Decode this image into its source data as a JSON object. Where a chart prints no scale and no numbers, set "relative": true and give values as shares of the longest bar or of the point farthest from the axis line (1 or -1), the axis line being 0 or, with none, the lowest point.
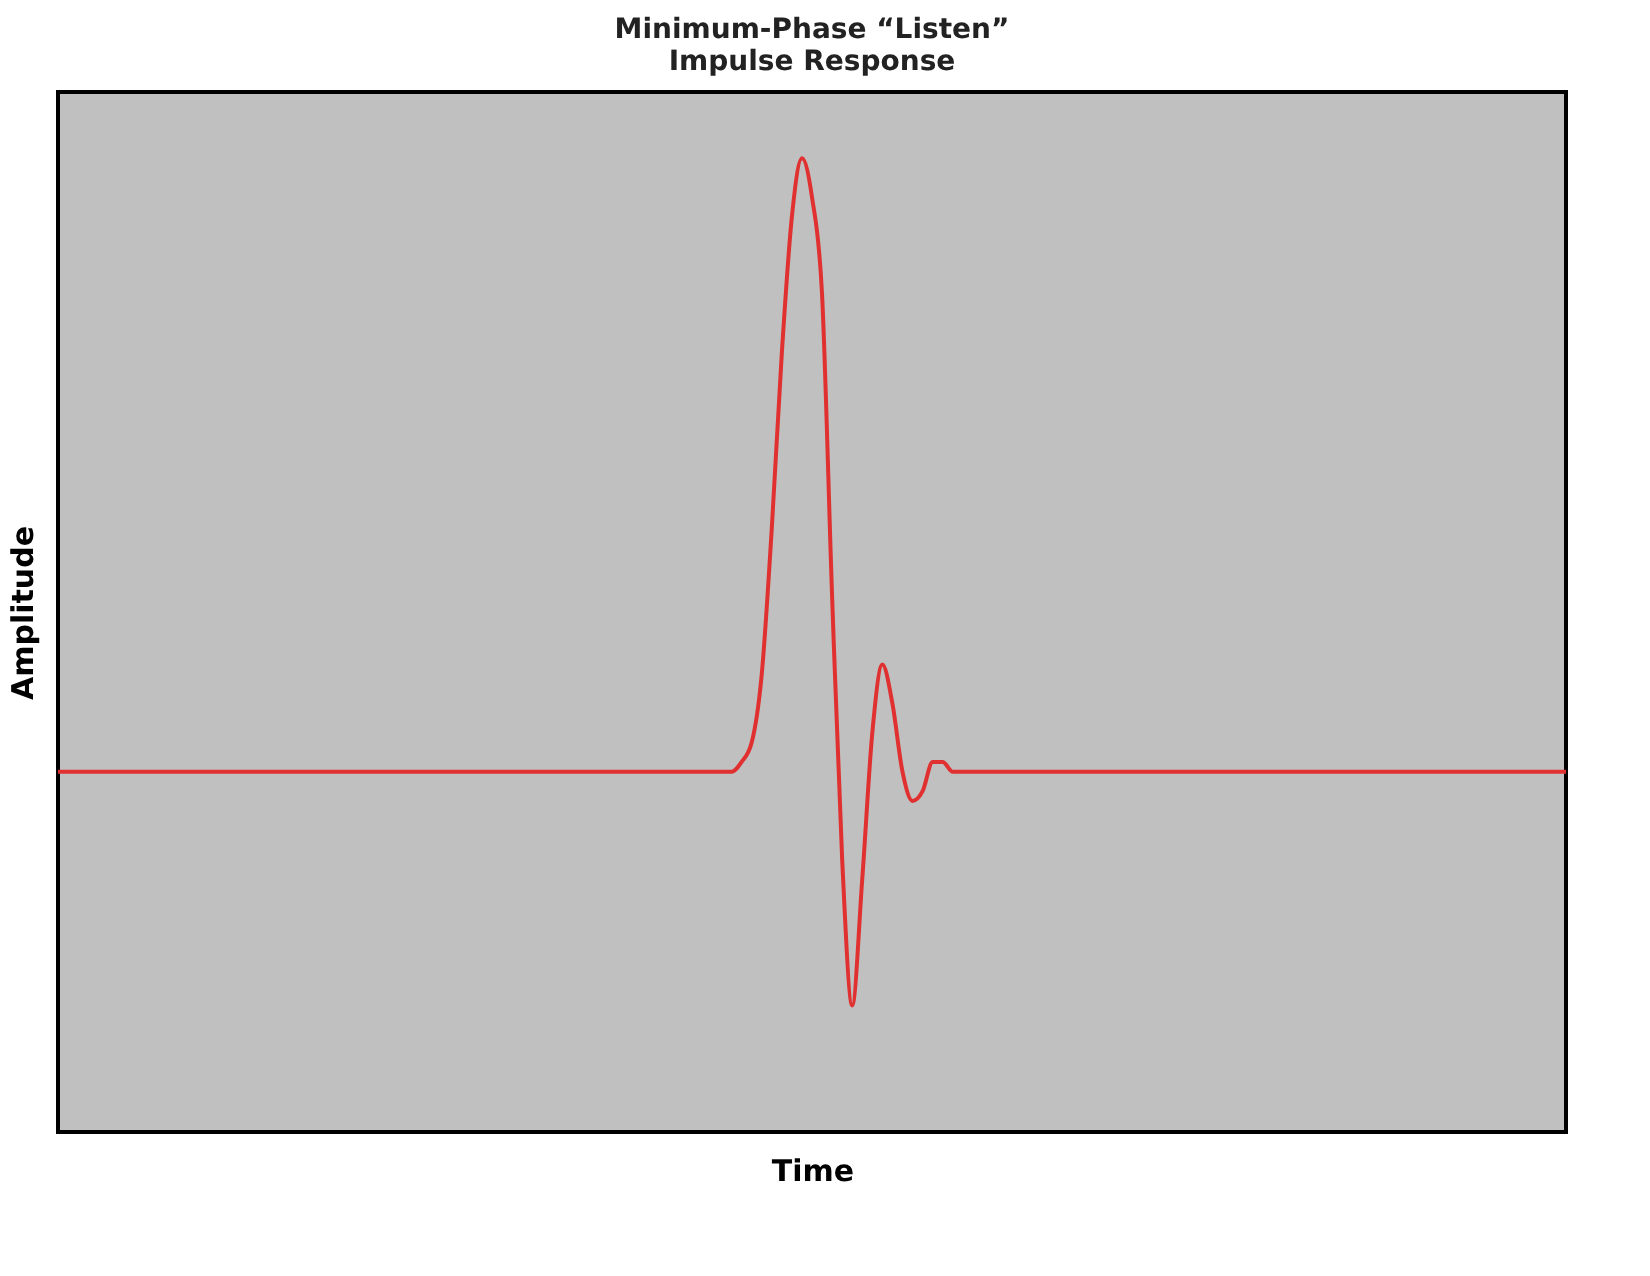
{
  "chart_data": {
    "type": "line",
    "title": "Minimum-Phase “Listen”\nImpulse Response",
    "xlabel": "Time",
    "ylabel": "Amplitude",
    "relative": true,
    "categories": [
      null,
      null,
      null,
      null,
      null,
      null,
      null,
      null,
      null,
      null,
      null,
      null,
      null,
      null,
      null,
      null,
      null,
      null,
      null,
      null,
      null,
      null,
      null,
      null,
      null,
      null,
      null,
      null,
      null,
      null,
      null,
      null,
      null,
      null,
      null,
      null,
      null,
      null,
      null,
      null,
      null,
      null,
      null,
      null,
      null,
      null,
      null,
      null,
      null,
      null,
      null,
      null,
      null,
      null,
      null,
      null,
      null,
      null,
      null,
      null,
      null,
      null,
      null,
      null,
      null,
      null,
      null,
      null,
      null,
      null,
      null,
      null,
      null,
      null,
      null,
      null,
      null,
      null,
      null,
      null,
      null,
      null,
      null,
      null,
      null,
      null,
      null,
      null,
      null,
      null,
      null,
      null,
      null,
      null,
      null,
      null,
      null,
      null,
      null,
      null,
      null,
      null,
      null,
      null,
      null,
      null,
      null,
      null,
      null,
      null,
      null,
      null,
      null,
      null,
      null,
      null,
      null,
      null,
      null,
      null,
      null,
      null,
      null,
      null,
      null,
      null,
      null,
      null,
      null,
      null,
      null,
      null,
      null,
      null,
      null,
      null,
      null,
      null,
      null,
      null,
      null,
      null,
      null,
      null,
      null,
      null,
      null,
      null,
      null,
      null,
      null
    ],
    "series": [
      {
        "color": "#e03030",
        "values": [
          0.37,
          0.37,
          0.37,
          0.37,
          0.37,
          0.37,
          0.37,
          0.37,
          0.37,
          0.37,
          0.37,
          0.37,
          0.37,
          0.37,
          0.37,
          0.37,
          0.37,
          0.37,
          0.37,
          0.37,
          0.37,
          0.37,
          0.37,
          0.37,
          0.37,
          0.37,
          0.37,
          0.37,
          0.37,
          0.37,
          0.37,
          0.37,
          0.37,
          0.37,
          0.37,
          0.37,
          0.37,
          0.37,
          0.37,
          0.37,
          0.37,
          0.37,
          0.37,
          0.37,
          0.37,
          0.37,
          0.37,
          0.37,
          0.37,
          0.37,
          0.37,
          0.37,
          0.37,
          0.37,
          0.37,
          0.37,
          0.37,
          0.37,
          0.37,
          0.37,
          0.37,
          0.37,
          0.37,
          0.37,
          0.37,
          0.37,
          0.37,
          0.37,
          0.38,
          0.4,
          0.47,
          0.62,
          0.8,
          0.94,
          1,
          0.96,
          0.86,
          0.55,
          0.28,
          0.13,
          0.26,
          0.41,
          0.48,
          0.44,
          0.37,
          0.34,
          0.35,
          0.38,
          0.38,
          0.37,
          0.37,
          0.37,
          0.37,
          0.37,
          0.37,
          0.37,
          0.37,
          0.37,
          0.37,
          0.37,
          0.37,
          0.37,
          0.37,
          0.37,
          0.37,
          0.37,
          0.37,
          0.37,
          0.37,
          0.37,
          0.37,
          0.37,
          0.37,
          0.37,
          0.37,
          0.37,
          0.37,
          0.37,
          0.37,
          0.37,
          0.37,
          0.37,
          0.37,
          0.37,
          0.37,
          0.37,
          0.37,
          0.37,
          0.37,
          0.37,
          0.37,
          0.37,
          0.37,
          0.37,
          0.37,
          0.37,
          0.37,
          0.37,
          0.37,
          0.37,
          0.37,
          0.37,
          0.37,
          0.37,
          0.37,
          0.37,
          0.37,
          0.37,
          0.37,
          0.37,
          0.37
        ]
      }
    ],
    "grid": false
  }
}
